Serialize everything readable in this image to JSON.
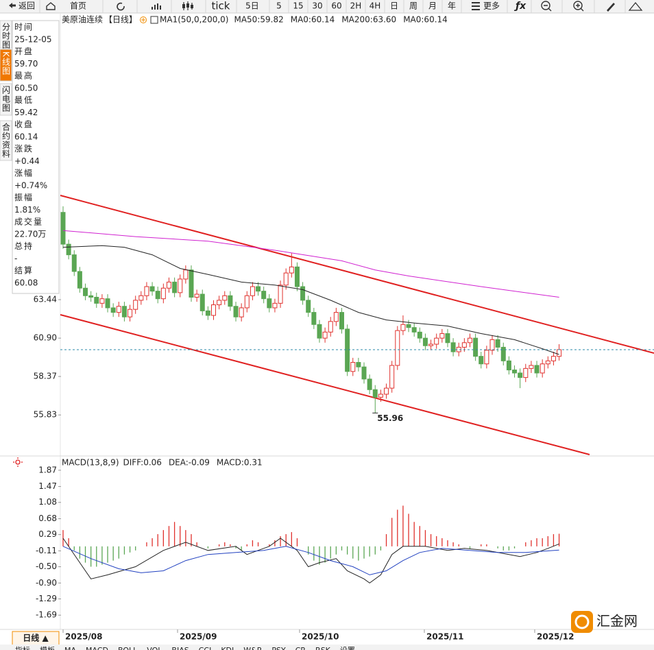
{
  "toolbar": [
    "返回",
    "首页",
    "tick",
    "5日",
    "5",
    "15",
    "30",
    "60",
    "2H",
    "4H",
    "日",
    "周",
    "月",
    "年",
    "更多"
  ],
  "side_tabs": [
    "分时图",
    "K线图",
    "闪电图",
    "合约资料"
  ],
  "info": [
    {
      "label": "时间",
      "value": "25-12-05",
      "color": "#222"
    },
    {
      "label": "开盘",
      "value": "59.70",
      "color": "#222"
    },
    {
      "label": "最高",
      "value": "60.50",
      "color": "#e0302c"
    },
    {
      "label": "最低",
      "value": "59.42",
      "color": "#2e9a2e"
    },
    {
      "label": "收盘",
      "value": "60.14",
      "color": "#e0302c"
    },
    {
      "label": "涨跌",
      "value": "+0.44",
      "color": "#e0302c"
    },
    {
      "label": "涨幅",
      "value": "+0.74%",
      "color": "#e0302c"
    },
    {
      "label": "振幅",
      "value": "1.81%",
      "color": "#222"
    },
    {
      "label": "成交量",
      "value": "22.70万",
      "color": "#222"
    },
    {
      "label": "总持",
      "value": "-",
      "color": "#222"
    },
    {
      "label": "结算",
      "value": "60.08",
      "color": "#222"
    }
  ],
  "date_labels": [
    "2025/08",
    "2025/09",
    "2025/10",
    "2025/11",
    "2025/12"
  ],
  "period_tab": "日线 ▲",
  "bottom_tabs": [
    "指标",
    "模板",
    "MA",
    "MACD",
    "BOLL",
    "VOL",
    "BIAS",
    "CCI",
    "KDJ",
    "W&R",
    "PSY",
    "CR",
    "RSK",
    "设置"
  ],
  "watermark": "汇金网",
  "chart_data": [
    {
      "type": "candlestick",
      "title": "美原油连续",
      "period": "【日线】",
      "indicator": "MA1(50,0,200,0)",
      "legend": [
        {
          "text": "MA50:59.82",
          "color": "#222"
        },
        {
          "text": "MA0:60.14",
          "color": "#2040c0"
        },
        {
          "text": "MA200:63.60",
          "color": "#d020d0"
        },
        {
          "text": "MA0:60.14",
          "color": "#f08c00"
        }
      ],
      "up_color": "#e0302c",
      "down_color": "#5aa653",
      "ylim": [
        53.26,
        82.31
      ],
      "yticks": [
        63.44,
        {
          "value": 60.9,
          "label": "60.90"
        },
        58.37,
        55.83
      ],
      "candles": [
        [
          69.2,
          69.6,
          66.8,
          67.1
        ],
        [
          67.1,
          67.4,
          66.1,
          66.4
        ],
        [
          66.4,
          66.7,
          65.0,
          65.3
        ],
        [
          65.3,
          65.6,
          63.9,
          64.2
        ],
        [
          64.2,
          64.5,
          63.4,
          63.7
        ],
        [
          63.7,
          64.0,
          63.3,
          63.6
        ],
        [
          63.6,
          63.9,
          62.9,
          63.2
        ],
        [
          63.2,
          63.8,
          62.9,
          63.5
        ],
        [
          63.5,
          63.8,
          62.6,
          62.9
        ],
        [
          62.9,
          63.2,
          62.3,
          62.6
        ],
        [
          62.6,
          63.3,
          62.3,
          63.0
        ],
        [
          63.0,
          63.3,
          62.0,
          62.3
        ],
        [
          62.3,
          63.1,
          62.0,
          62.8
        ],
        [
          62.8,
          63.7,
          62.5,
          63.4
        ],
        [
          63.4,
          64.0,
          63.1,
          63.7
        ],
        [
          63.7,
          64.6,
          63.4,
          64.3
        ],
        [
          64.3,
          64.6,
          63.7,
          64.0
        ],
        [
          64.0,
          64.3,
          63.2,
          63.5
        ],
        [
          63.5,
          64.5,
          63.2,
          64.2
        ],
        [
          64.2,
          64.9,
          63.9,
          64.6
        ],
        [
          64.6,
          64.9,
          63.6,
          63.9
        ],
        [
          63.9,
          65.1,
          63.6,
          64.8
        ],
        [
          64.8,
          65.7,
          64.5,
          65.4
        ],
        [
          65.4,
          65.7,
          63.3,
          63.6
        ],
        [
          63.6,
          64.1,
          63.3,
          63.8
        ],
        [
          63.8,
          64.1,
          62.4,
          62.7
        ],
        [
          62.7,
          63.0,
          62.1,
          62.4
        ],
        [
          62.4,
          63.4,
          62.1,
          63.1
        ],
        [
          63.1,
          63.7,
          62.8,
          63.4
        ],
        [
          63.4,
          64.0,
          63.1,
          63.7
        ],
        [
          63.7,
          64.0,
          62.7,
          63.0
        ],
        [
          63.0,
          63.3,
          62.0,
          62.3
        ],
        [
          62.3,
          63.2,
          62.0,
          62.9
        ],
        [
          62.9,
          64.0,
          62.6,
          63.7
        ],
        [
          63.7,
          64.6,
          63.4,
          64.3
        ],
        [
          64.3,
          64.6,
          63.7,
          64.0
        ],
        [
          64.0,
          64.3,
          63.2,
          63.5
        ],
        [
          63.5,
          63.8,
          62.6,
          62.9
        ],
        [
          62.9,
          63.5,
          62.6,
          63.2
        ],
        [
          63.2,
          64.7,
          62.9,
          64.4
        ],
        [
          64.4,
          65.5,
          64.1,
          65.2
        ],
        [
          65.2,
          66.5,
          64.9,
          65.6
        ],
        [
          65.6,
          65.9,
          64.0,
          64.3
        ],
        [
          64.3,
          64.6,
          63.1,
          63.4
        ],
        [
          63.4,
          63.7,
          62.3,
          62.6
        ],
        [
          62.6,
          62.9,
          61.5,
          61.8
        ],
        [
          61.8,
          62.1,
          60.6,
          60.9
        ],
        [
          60.9,
          61.6,
          60.6,
          61.3
        ],
        [
          61.3,
          62.3,
          61.0,
          62.0
        ],
        [
          62.0,
          62.9,
          61.7,
          62.6
        ],
        [
          62.6,
          62.9,
          61.2,
          61.5
        ],
        [
          61.5,
          61.8,
          58.4,
          58.7
        ],
        [
          58.7,
          59.6,
          58.4,
          59.3
        ],
        [
          59.3,
          59.6,
          58.7,
          59.0
        ],
        [
          59.0,
          59.3,
          57.9,
          58.2
        ],
        [
          58.2,
          58.5,
          57.2,
          57.5
        ],
        [
          57.5,
          57.8,
          55.96,
          57.0
        ],
        [
          57.0,
          57.5,
          56.7,
          57.2
        ],
        [
          57.2,
          57.9,
          56.9,
          57.6
        ],
        [
          57.6,
          59.4,
          57.3,
          59.1
        ],
        [
          59.1,
          61.7,
          58.8,
          61.4
        ],
        [
          61.4,
          62.4,
          61.1,
          61.8
        ],
        [
          61.8,
          62.1,
          61.3,
          61.6
        ],
        [
          61.6,
          61.9,
          61.0,
          61.3
        ],
        [
          61.3,
          61.6,
          60.6,
          60.9
        ],
        [
          60.9,
          61.2,
          60.1,
          60.4
        ],
        [
          60.4,
          60.8,
          60.1,
          60.5
        ],
        [
          60.5,
          61.2,
          60.2,
          60.9
        ],
        [
          60.9,
          61.5,
          60.6,
          61.2
        ],
        [
          61.2,
          61.5,
          60.3,
          60.6
        ],
        [
          60.6,
          60.9,
          59.7,
          60.0
        ],
        [
          60.0,
          60.6,
          59.7,
          60.3
        ],
        [
          60.3,
          60.9,
          60.0,
          60.6
        ],
        [
          60.6,
          61.2,
          60.3,
          60.9
        ],
        [
          60.9,
          61.2,
          59.4,
          59.7
        ],
        [
          59.7,
          60.0,
          58.9,
          59.2
        ],
        [
          59.2,
          60.4,
          58.9,
          60.1
        ],
        [
          60.1,
          61.1,
          59.8,
          60.8
        ],
        [
          60.8,
          61.1,
          60.0,
          60.3
        ],
        [
          60.3,
          60.6,
          59.1,
          59.4
        ],
        [
          59.4,
          59.7,
          58.5,
          58.8
        ],
        [
          58.8,
          59.1,
          58.3,
          58.6
        ],
        [
          58.6,
          58.9,
          57.6,
          58.3
        ],
        [
          58.3,
          59.2,
          58.0,
          58.9
        ],
        [
          58.9,
          59.4,
          58.6,
          59.1
        ],
        [
          59.1,
          59.4,
          58.3,
          58.6
        ],
        [
          58.6,
          59.5,
          58.3,
          59.2
        ],
        [
          59.2,
          59.7,
          58.9,
          59.4
        ],
        [
          59.4,
          60.0,
          59.1,
          59.7
        ],
        [
          59.7,
          60.5,
          59.42,
          60.14
        ]
      ],
      "series": [
        {
          "name": "MA50",
          "color": "#222",
          "x": [
            0,
            7,
            11,
            16,
            21,
            26,
            32,
            38,
            43,
            48,
            53,
            58,
            63,
            69,
            75,
            81,
            86,
            89
          ],
          "values": [
            66.9,
            67.0,
            66.9,
            66.4,
            65.5,
            65.1,
            64.6,
            64.4,
            64.1,
            63.4,
            62.6,
            62.1,
            61.9,
            61.7,
            61.2,
            60.8,
            60.2,
            59.82
          ]
        },
        {
          "name": "MA200",
          "color": "#d020d0",
          "x": [
            0,
            13,
            26,
            38,
            50,
            56,
            62,
            75,
            89
          ],
          "values": [
            68.0,
            67.6,
            67.3,
            66.7,
            66.0,
            65.4,
            65.0,
            64.3,
            63.6
          ]
        }
      ]
    },
    {
      "type": "macd",
      "title": "MACD(13,8,9)",
      "legend": [
        {
          "text": "DIFF:0.06",
          "color": "#222"
        },
        {
          "text": "DEA:-0.09",
          "color": "#2040c0"
        },
        {
          "text": "MACD:0.31",
          "color": "#d020d0"
        }
      ],
      "up_color": "#e0302c",
      "down_color": "#5aa653",
      "ylim": [
        -1.99,
        2.17
      ],
      "yticks": [
        1.87,
        1.47,
        1.08,
        0.68,
        0.29,
        -0.11,
        {
          "value": -0.5,
          "label": "-0.50"
        },
        {
          "value": -0.9,
          "label": "-0.90"
        },
        -1.29,
        -1.69
      ],
      "histogram": [
        0.4,
        0.2,
        -0.1,
        -0.3,
        -0.4,
        -0.5,
        -0.5,
        -0.45,
        -0.4,
        -0.35,
        -0.3,
        -0.2,
        -0.15,
        -0.1,
        0.0,
        0.1,
        0.2,
        0.3,
        0.4,
        0.5,
        0.6,
        0.5,
        0.4,
        0.3,
        0.1,
        0.0,
        -0.05,
        0.0,
        0.05,
        0.1,
        0.05,
        -0.05,
        -0.1,
        0.05,
        0.15,
        0.1,
        0.0,
        0.05,
        0.15,
        0.25,
        0.3,
        0.35,
        0.2,
        0.0,
        -0.2,
        -0.35,
        -0.45,
        -0.4,
        -0.3,
        -0.2,
        -0.1,
        -0.2,
        -0.3,
        -0.35,
        -0.3,
        -0.25,
        -0.2,
        -0.1,
        0.3,
        0.7,
        0.9,
        1.0,
        0.8,
        0.6,
        0.5,
        0.4,
        0.3,
        0.25,
        0.2,
        0.15,
        0.1,
        0.05,
        0.0,
        -0.05,
        0.0,
        0.05,
        0.05,
        0.0,
        -0.05,
        -0.1,
        -0.1,
        -0.05,
        0.0,
        0.1,
        0.15,
        0.2,
        0.2,
        0.25,
        0.3,
        0.31
      ],
      "series": [
        {
          "name": "DIFF",
          "color": "#222",
          "x": [
            0,
            5,
            8,
            13,
            18,
            22,
            26,
            31,
            33,
            37,
            39,
            42,
            44,
            46,
            49,
            51,
            54,
            55,
            57,
            59,
            61,
            65,
            69,
            72,
            76,
            80,
            82,
            85,
            87,
            89
          ],
          "values": [
            0.2,
            -0.8,
            -0.7,
            -0.5,
            -0.1,
            0.1,
            -0.1,
            0.0,
            -0.2,
            0.0,
            0.2,
            -0.1,
            -0.5,
            -0.4,
            -0.3,
            -0.6,
            -0.8,
            -0.9,
            -0.7,
            -0.2,
            0.0,
            0.0,
            -0.1,
            -0.05,
            -0.1,
            -0.2,
            -0.25,
            -0.15,
            -0.05,
            0.06
          ]
        },
        {
          "name": "DEA",
          "color": "#2040c0",
          "x": [
            0,
            5,
            10,
            14,
            18,
            22,
            26,
            31,
            36,
            40,
            44,
            48,
            52,
            55,
            58,
            61,
            64,
            68,
            73,
            78,
            83,
            89
          ],
          "values": [
            0.0,
            -0.3,
            -0.55,
            -0.65,
            -0.6,
            -0.35,
            -0.2,
            -0.15,
            -0.1,
            0.0,
            -0.15,
            -0.35,
            -0.5,
            -0.7,
            -0.6,
            -0.35,
            -0.15,
            -0.05,
            -0.1,
            -0.15,
            -0.15,
            -0.09
          ]
        }
      ]
    }
  ]
}
